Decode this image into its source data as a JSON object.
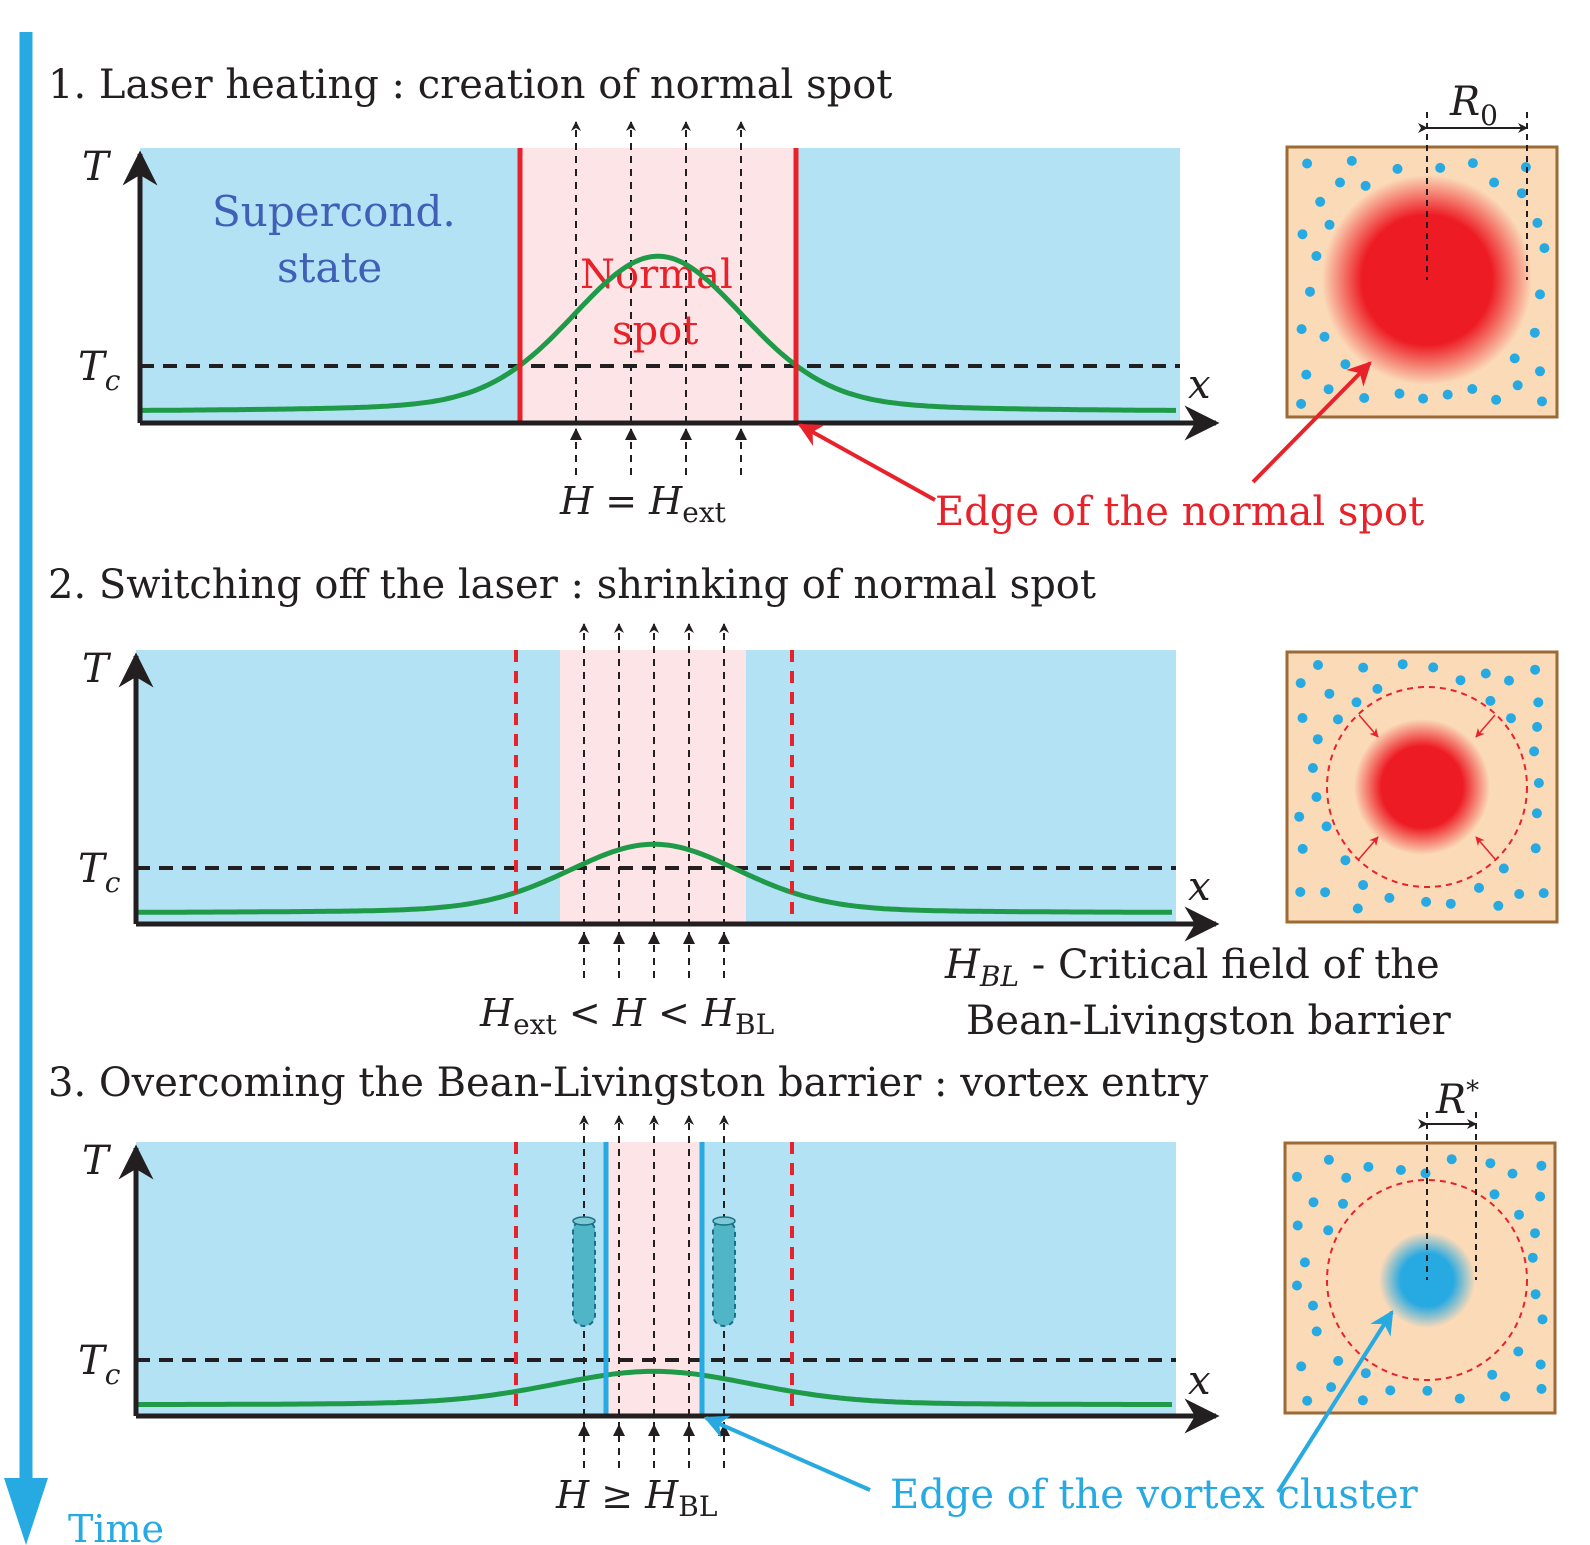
{
  "colors": {
    "timeline": "#27a9e1",
    "superconducting_region": "#b3e2f5",
    "normal_region": "#fde4e6",
    "temperature_curve": "#1f9a48",
    "normal_edge": "#e8222b",
    "vortex_edge": "#27a9e1",
    "sample_fill": "#fbdab8",
    "sample_border": "#9b6a35",
    "vortex_dot": "#27a9e1"
  },
  "timeline": {
    "label": "Time"
  },
  "stages": [
    {
      "title": "1. Laser heating : creation of normal spot",
      "y_axis_label": "T",
      "tc_label": "T",
      "tc_sub": "c",
      "x_axis_label": "x",
      "superconducting_label_line1": "Supercond.",
      "superconducting_label_line2": "state",
      "normal_label_line1": "Normal",
      "normal_label_line2": "spot",
      "field_label": {
        "main": "H = H",
        "sub": "ext",
        "rest": ""
      },
      "annotation": "Edge of the normal spot",
      "radius_label": {
        "main": "R",
        "sub": "0"
      },
      "peak_temperature": 1.0
    },
    {
      "title": "2. Switching off the laser : shrinking of normal spot",
      "y_axis_label": "T",
      "tc_label": "T",
      "tc_sub": "c",
      "x_axis_label": "x",
      "field_label": {
        "a": "H",
        "a_sub": "ext",
        "b": " < H < H",
        "b_sub": "BL"
      },
      "note_line1_main": "H",
      "note_line1_sub": "BL",
      "note_line1_rest": " - Critical field of the",
      "note_line2": "Bean-Livingston barrier",
      "peak_temperature": 0.45
    },
    {
      "title": "3. Overcoming the Bean-Livingston barrier : vortex entry",
      "y_axis_label": "T",
      "tc_label": "T",
      "tc_sub": "c",
      "x_axis_label": "x",
      "field_label": {
        "main": "H ≥ H",
        "sub": "BL"
      },
      "annotation": "Edge of the vortex cluster",
      "radius_label": {
        "main": "R",
        "sup": "*"
      },
      "peak_temperature": 0.22
    }
  ]
}
